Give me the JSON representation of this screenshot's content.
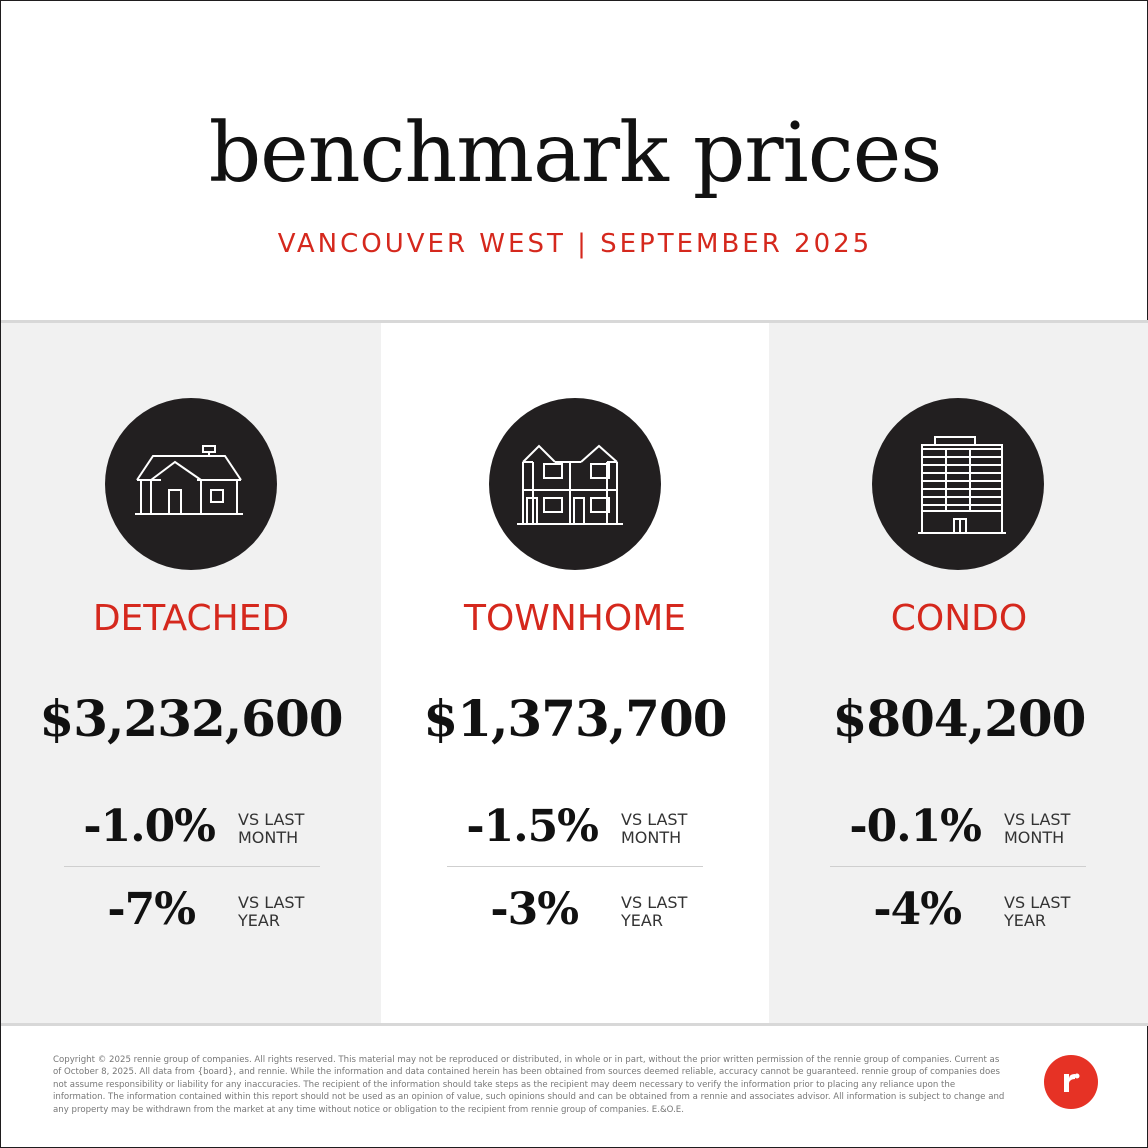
{
  "header": {
    "title": "benchmark prices",
    "subtitle": "VANCOUVER WEST | SEPTEMBER 2025"
  },
  "colors": {
    "accent": "#d5281d",
    "icon_circle": "#221f20",
    "panel_gray": "#f1f1f1",
    "logo_red": "#e63225"
  },
  "categories": [
    {
      "icon": "detached-house-icon",
      "label": "DETACHED",
      "price": "$3,232,600",
      "month_change": "-1.0%",
      "month_label_1": "VS LAST",
      "month_label_2": "MONTH",
      "year_change": "-7%",
      "year_label_1": "VS LAST",
      "year_label_2": "YEAR"
    },
    {
      "icon": "townhome-icon",
      "label": "TOWNHOME",
      "price": "$1,373,700",
      "month_change": "-1.5%",
      "month_label_1": "VS LAST",
      "month_label_2": "MONTH",
      "year_change": "-3%",
      "year_label_1": "VS LAST",
      "year_label_2": "YEAR"
    },
    {
      "icon": "condo-building-icon",
      "label": "CONDO",
      "price": "$804,200",
      "month_change": "-0.1%",
      "month_label_1": "VS LAST",
      "month_label_2": "MONTH",
      "year_change": "-4%",
      "year_label_1": "VS LAST",
      "year_label_2": "YEAR"
    }
  ],
  "footer": {
    "disclaimer": "Copyright © 2025 rennie group of companies. All rights reserved. This material may not be reproduced or distributed, in whole or in part, without the prior written permission of the rennie group of companies. Current as of October 8, 2025. All data from {board}, and rennie. While the information and data contained herein has been obtained from sources deemed reliable, accuracy cannot be guaranteed. rennie group of companies does not assume responsibility or liability for any inaccuracies. The recipient of the information should take steps as the recipient may deem necessary to verify the information prior to placing any reliance upon the information. The information contained within this report should not be used as an opinion of value, such opinions should and can be obtained from a rennie and associates advisor. All information is subject to change and any property may be withdrawn from the market at any time without notice or obligation to the recipient from rennie group of companies. E.&O.E.",
    "logo_icon": "rennie-logo-icon"
  }
}
